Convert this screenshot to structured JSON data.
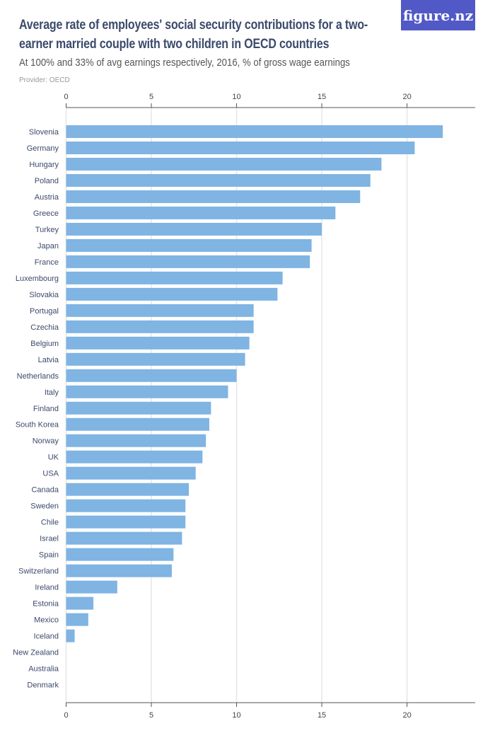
{
  "header": {
    "title": "Average rate of employees' social security contributions for a two-earner married couple with two children in OECD countries",
    "subtitle": "At 100% and 33% of avg earnings respectively, 2016, % of gross wage earnings",
    "provider": "Provider: OECD",
    "logo": "figure.nz"
  },
  "colors": {
    "bar": "#7fb4e3",
    "grid": "#e6e6e6",
    "axis": "#555555",
    "brand": "#5159c6"
  },
  "chart_data": {
    "type": "bar",
    "orientation": "horizontal",
    "title": "Average rate of employees' social security contributions for a two-earner married couple with two children in OECD countries",
    "subtitle": "At 100% and 33% of avg earnings respectively, 2016, % of gross wage earnings",
    "xlim": [
      0,
      24
    ],
    "ticks": [
      0,
      5,
      10,
      15,
      20
    ],
    "tick_labels": [
      "0",
      "5",
      "10",
      "15",
      "20"
    ],
    "grid": true,
    "categories": [
      "Slovenia",
      "Germany",
      "Hungary",
      "Poland",
      "Austria",
      "Greece",
      "Turkey",
      "Japan",
      "France",
      "Luxembourg",
      "Slovakia",
      "Portugal",
      "Czechia",
      "Belgium",
      "Latvia",
      "Netherlands",
      "Italy",
      "Finland",
      "South Korea",
      "Norway",
      "UK",
      "USA",
      "Canada",
      "Sweden",
      "Chile",
      "Israel",
      "Spain",
      "Switzerland",
      "Ireland",
      "Estonia",
      "Mexico",
      "Iceland",
      "New Zealand",
      "Australia",
      "Denmark"
    ],
    "values": [
      22.1,
      20.45,
      18.5,
      17.85,
      17.25,
      15.8,
      15.0,
      14.4,
      14.3,
      12.7,
      12.4,
      11.0,
      11.0,
      10.75,
      10.5,
      10.0,
      9.5,
      8.5,
      8.4,
      8.2,
      8.0,
      7.6,
      7.2,
      7.0,
      7.0,
      6.8,
      6.3,
      6.2,
      3.0,
      1.6,
      1.3,
      0.5,
      0,
      0,
      0
    ]
  }
}
